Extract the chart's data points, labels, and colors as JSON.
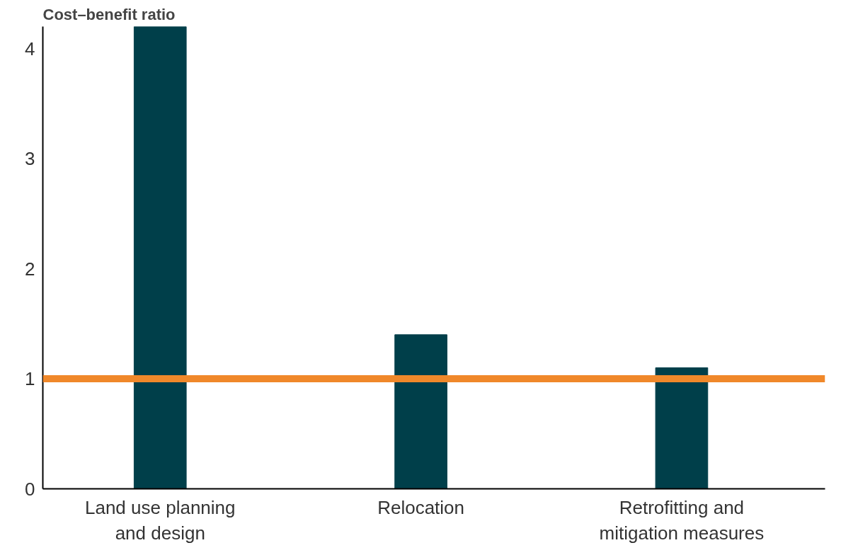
{
  "chart_data": {
    "type": "bar",
    "title": "Cost–benefit ratio",
    "categories": [
      "Land use planning and design",
      "Relocation",
      "Retrofitting and mitigation measures"
    ],
    "values": [
      4.2,
      1.4,
      1.1
    ],
    "color": "#003f4a",
    "ylim": [
      0,
      4.2
    ],
    "yticks": [
      0,
      1,
      2,
      3,
      4
    ],
    "grid": false,
    "ref_lines": [
      {
        "axis": "y",
        "value": 1,
        "color": "#f0882a"
      }
    ]
  }
}
